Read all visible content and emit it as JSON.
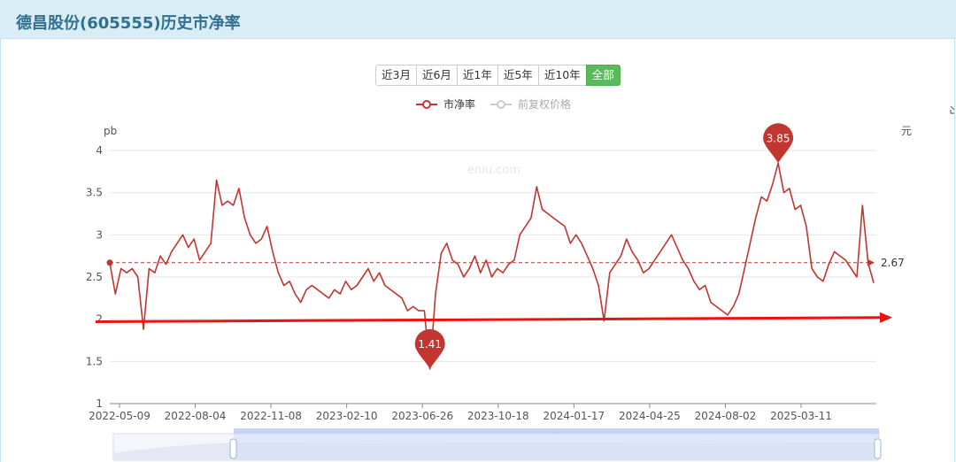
{
  "header": {
    "title": "德昌股份(605555)历史市净率"
  },
  "range_buttons": [
    {
      "label": "近3月"
    },
    {
      "label": "近6月"
    },
    {
      "label": "近1年"
    },
    {
      "label": "近5年"
    },
    {
      "label": "近10年"
    },
    {
      "label": "全部",
      "active": true
    }
  ],
  "chart_data": {
    "type": "line",
    "title": "",
    "watermark": "eniu.com",
    "ylabel_left": "pb",
    "ylabel_right": "元",
    "ylim": [
      1,
      4
    ],
    "yticks": [
      "1",
      "1.5",
      "2",
      "2.5",
      "3",
      "3.5",
      "4"
    ],
    "xticks": [
      "2022-05-09",
      "2022-08-04",
      "2022-11-08",
      "2023-02-10",
      "2023-06-26",
      "2023-10-18",
      "2024-01-17",
      "2024-04-25",
      "2024-08-02",
      "2025-03-11"
    ],
    "grid": true,
    "legend_position": "top-center",
    "series": [
      {
        "name": "市净率",
        "color": "#c23531",
        "values": [
          2.67,
          2.3,
          2.6,
          2.55,
          2.6,
          2.5,
          1.88,
          2.6,
          2.55,
          2.75,
          2.65,
          2.8,
          2.9,
          3.0,
          2.85,
          2.95,
          2.7,
          2.8,
          2.9,
          3.65,
          3.35,
          3.4,
          3.35,
          3.55,
          3.2,
          3.0,
          2.9,
          2.95,
          3.1,
          2.8,
          2.55,
          2.4,
          2.45,
          2.3,
          2.2,
          2.35,
          2.4,
          2.35,
          2.3,
          2.25,
          2.35,
          2.3,
          2.45,
          2.35,
          2.4,
          2.5,
          2.6,
          2.45,
          2.55,
          2.4,
          2.35,
          2.3,
          2.25,
          2.1,
          2.15,
          2.1,
          2.1,
          1.41,
          2.3,
          2.78,
          2.9,
          2.7,
          2.65,
          2.5,
          2.6,
          2.75,
          2.55,
          2.7,
          2.5,
          2.6,
          2.55,
          2.65,
          2.7,
          3.0,
          3.1,
          3.2,
          3.57,
          3.3,
          3.25,
          3.2,
          3.15,
          3.1,
          2.9,
          3.0,
          2.9,
          2.75,
          2.6,
          2.4,
          1.98,
          2.55,
          2.65,
          2.75,
          2.95,
          2.8,
          2.7,
          2.55,
          2.6,
          2.7,
          2.8,
          2.9,
          3.0,
          2.85,
          2.7,
          2.6,
          2.45,
          2.35,
          2.4,
          2.2,
          2.15,
          2.1,
          2.05,
          2.15,
          2.3,
          2.6,
          2.9,
          3.2,
          3.45,
          3.4,
          3.6,
          3.85,
          3.5,
          3.55,
          3.3,
          3.35,
          3.1,
          2.6,
          2.5,
          2.45,
          2.65,
          2.8,
          2.75,
          2.7,
          2.6,
          2.5,
          3.35,
          2.67,
          2.43
        ],
        "markers": [
          {
            "label": "3.85",
            "value": 3.85,
            "kind": "max"
          },
          {
            "label": "1.41",
            "value": 1.41,
            "kind": "min"
          }
        ],
        "average_line": {
          "label": "2.67",
          "value": 2.67
        }
      },
      {
        "name": "前复权价格",
        "color": "#cccccc",
        "visible": false
      }
    ],
    "annotations": [
      {
        "type": "arrow",
        "color": "#ee1111",
        "from_value": 1.97,
        "to_value": 2.02
      }
    ]
  }
}
